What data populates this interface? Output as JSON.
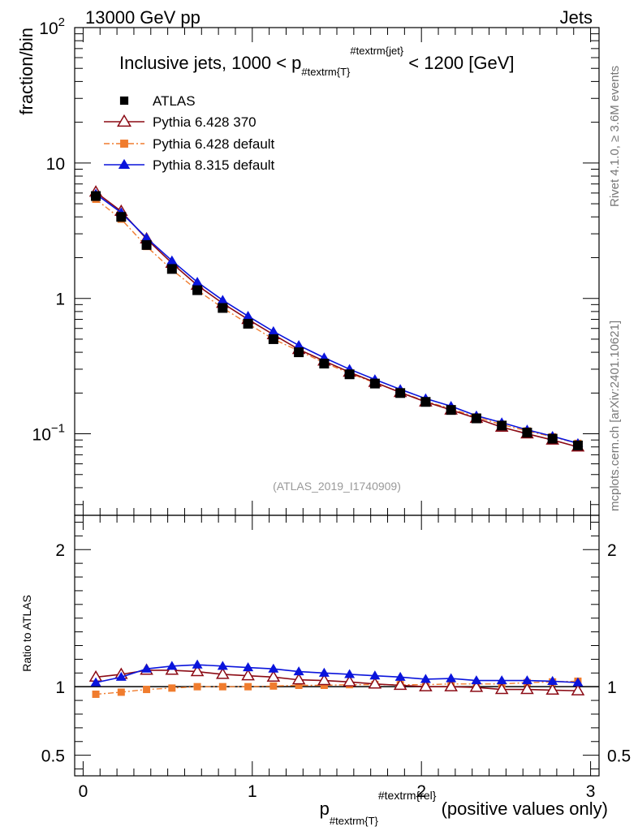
{
  "header": {
    "left": "13000 GeV pp",
    "right": "Jets"
  },
  "side_labels": {
    "rivet": "Rivet 4.1.0, ≥ 3.6M events",
    "mcplots": "mcplots.cern.ch [arXiv:2401.10621]"
  },
  "watermark": "(ATLAS_2019_I1740909)",
  "title": {
    "main": "Inclusive jets, 1000 < p",
    "sub": "#textrm{T}",
    "sup": "#textrm{jet}",
    "tail": " < 1200 [GeV]"
  },
  "xlabel": {
    "main": "p",
    "sub": "#textrm{T}",
    "sup": "#textrm{rel}",
    "tail": " (positive values only)"
  },
  "colors": {
    "atlas": "#000000",
    "py6_370": "#8b0a14",
    "py6_default": "#f07c2e",
    "py8_default": "#0a14dc",
    "ref_line": "#000000"
  },
  "chart_data": [
    {
      "type": "line",
      "panel": "main",
      "ylabel": "fraction/bin",
      "yscale": "log",
      "ylim": [
        0.025,
        100
      ],
      "xlim": [
        -0.05,
        3.05
      ],
      "xticks": [
        0,
        1,
        2,
        3
      ],
      "yticks": [
        {
          "value": 0.1,
          "base": "10",
          "exp": "−1"
        },
        {
          "value": 1,
          "base": "1",
          "exp": ""
        },
        {
          "value": 10,
          "base": "10",
          "exp": ""
        },
        {
          "value": 100,
          "base": "10",
          "exp": "2"
        }
      ],
      "x": [
        0.075,
        0.225,
        0.375,
        0.525,
        0.675,
        0.825,
        0.975,
        1.125,
        1.275,
        1.425,
        1.575,
        1.725,
        1.875,
        2.025,
        2.175,
        2.325,
        2.475,
        2.625,
        2.775,
        2.925
      ],
      "series": [
        {
          "name": "ATLAS",
          "key": "atlas",
          "marker": "square-filled",
          "values": [
            5.7,
            4.0,
            2.48,
            1.65,
            1.15,
            0.85,
            0.65,
            0.5,
            0.4,
            0.33,
            0.275,
            0.235,
            0.2,
            0.172,
            0.15,
            0.13,
            0.115,
            0.102,
            0.092,
            0.082
          ]
        },
        {
          "name": "Pythia 6.428 370",
          "key": "py6_370",
          "marker": "triangle-open",
          "values": [
            6.1,
            4.4,
            2.75,
            1.82,
            1.25,
            0.92,
            0.7,
            0.54,
            0.42,
            0.345,
            0.285,
            0.24,
            0.202,
            0.172,
            0.15,
            0.13,
            0.112,
            0.1,
            0.09,
            0.08
          ]
        },
        {
          "name": "Pythia 6.428 default",
          "key": "py6_default",
          "marker": "square-small",
          "values": [
            5.4,
            3.85,
            2.42,
            1.63,
            1.15,
            0.85,
            0.65,
            0.5,
            0.41,
            0.335,
            0.28,
            0.238,
            0.203,
            0.174,
            0.153,
            0.133,
            0.117,
            0.105,
            0.095,
            0.085
          ]
        },
        {
          "name": "Pythia 8.315 default",
          "key": "py8_default",
          "marker": "triangle-filled",
          "values": [
            5.9,
            4.3,
            2.8,
            1.9,
            1.32,
            0.97,
            0.74,
            0.57,
            0.45,
            0.365,
            0.3,
            0.252,
            0.213,
            0.182,
            0.16,
            0.136,
            0.121,
            0.107,
            0.096,
            0.085
          ]
        }
      ]
    },
    {
      "type": "line",
      "panel": "ratio",
      "ylabel": "Ratio to ATLAS",
      "ylim": [
        0.35,
        2.25
      ],
      "xlim": [
        -0.05,
        3.05
      ],
      "xticks": [
        0,
        1,
        2,
        3
      ],
      "yticks": [
        {
          "value": 0.5,
          "label": "0.5"
        },
        {
          "value": 1,
          "label": "1"
        },
        {
          "value": 2,
          "label": "2"
        }
      ],
      "x": [
        0.075,
        0.225,
        0.375,
        0.525,
        0.675,
        0.825,
        0.975,
        1.125,
        1.275,
        1.425,
        1.575,
        1.725,
        1.875,
        2.025,
        2.175,
        2.325,
        2.475,
        2.625,
        2.775,
        2.925
      ],
      "series": [
        {
          "name": "Pythia 6.428 370",
          "key": "py6_370",
          "marker": "triangle-open",
          "values": [
            1.07,
            1.09,
            1.12,
            1.12,
            1.11,
            1.09,
            1.08,
            1.07,
            1.05,
            1.045,
            1.035,
            1.02,
            1.01,
            1.0,
            1.0,
            0.995,
            0.98,
            0.98,
            0.975,
            0.97
          ]
        },
        {
          "name": "Pythia 6.428 default",
          "key": "py6_default",
          "marker": "square-small",
          "values": [
            0.945,
            0.96,
            0.98,
            0.99,
            1.0,
            1.0,
            1.0,
            1.005,
            1.01,
            1.01,
            1.015,
            1.015,
            1.015,
            1.015,
            1.02,
            1.02,
            1.02,
            1.03,
            1.035,
            1.04
          ]
        },
        {
          "name": "Pythia 8.315 default",
          "key": "py8_default",
          "marker": "triangle-filled",
          "values": [
            1.03,
            1.07,
            1.13,
            1.15,
            1.16,
            1.15,
            1.14,
            1.13,
            1.11,
            1.1,
            1.09,
            1.08,
            1.07,
            1.055,
            1.06,
            1.045,
            1.045,
            1.045,
            1.04,
            1.03
          ]
        }
      ]
    }
  ]
}
